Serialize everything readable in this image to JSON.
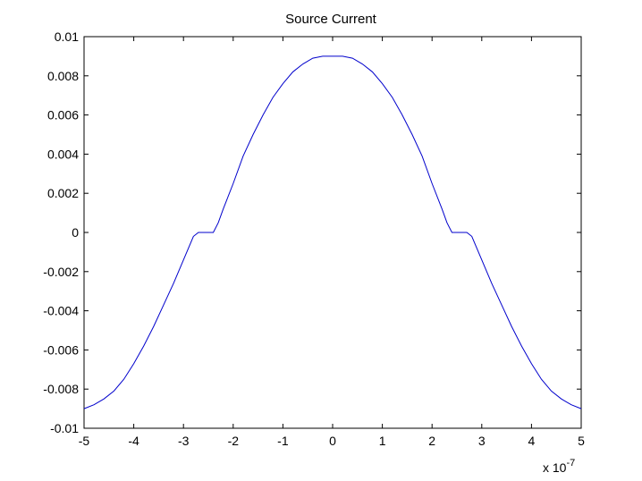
{
  "chart_data": {
    "type": "line",
    "title": "Source Current",
    "xlabel": "",
    "ylabel": "",
    "x_multiplier_label": {
      "base": "x 10",
      "exponent": "-7"
    },
    "xlim": [
      -5,
      5
    ],
    "ylim": [
      -0.01,
      0.01
    ],
    "x_ticks": [
      "-5",
      "-4",
      "-3",
      "-2",
      "-1",
      "0",
      "1",
      "2",
      "3",
      "4",
      "5"
    ],
    "x_tick_values": [
      -5,
      -4,
      -3,
      -2,
      -1,
      0,
      1,
      2,
      3,
      4,
      5
    ],
    "y_ticks": [
      "0.01",
      "0.008",
      "0.006",
      "0.004",
      "0.002",
      "0",
      "-0.002",
      "-0.004",
      "-0.006",
      "-0.008",
      "-0.01"
    ],
    "y_tick_values": [
      0.01,
      0.008,
      0.006,
      0.004,
      0.002,
      0,
      -0.002,
      -0.004,
      -0.006,
      -0.008,
      -0.01
    ],
    "grid": false,
    "series": [
      {
        "color": "#0000cc",
        "x": [
          -5,
          -4.8,
          -4.6,
          -4.4,
          -4.2,
          -4.0,
          -3.8,
          -3.6,
          -3.4,
          -3.2,
          -3.0,
          -2.8,
          -2.7,
          -2.6,
          -2.5,
          -2.4,
          -2.3,
          -2.2,
          -2.0,
          -1.8,
          -1.6,
          -1.4,
          -1.2,
          -1.0,
          -0.8,
          -0.6,
          -0.4,
          -0.2,
          0,
          0.2,
          0.4,
          0.6,
          0.8,
          1.0,
          1.2,
          1.4,
          1.6,
          1.8,
          2.0,
          2.2,
          2.3,
          2.4,
          2.5,
          2.6,
          2.7,
          2.8,
          3.0,
          3.2,
          3.4,
          3.6,
          3.8,
          4.0,
          4.2,
          4.4,
          4.6,
          4.8,
          5
        ],
        "y": [
          -0.009,
          -0.0088,
          -0.0085,
          -0.0081,
          -0.0075,
          -0.0067,
          -0.0058,
          -0.0048,
          -0.0037,
          -0.0026,
          -0.0014,
          -0.0002,
          0.0,
          0.0,
          0.0,
          0.0,
          0.0005,
          0.0012,
          0.0025,
          0.0039,
          0.005,
          0.006,
          0.0069,
          0.0076,
          0.0082,
          0.0086,
          0.0089,
          0.009,
          0.009,
          0.009,
          0.0089,
          0.0086,
          0.0082,
          0.0076,
          0.0069,
          0.006,
          0.005,
          0.0039,
          0.0025,
          0.0012,
          0.0005,
          0.0,
          0.0,
          0.0,
          0.0,
          -0.0002,
          -0.0014,
          -0.0026,
          -0.0037,
          -0.0048,
          -0.0058,
          -0.0067,
          -0.0075,
          -0.0081,
          -0.0085,
          -0.0088,
          -0.009
        ]
      }
    ]
  }
}
